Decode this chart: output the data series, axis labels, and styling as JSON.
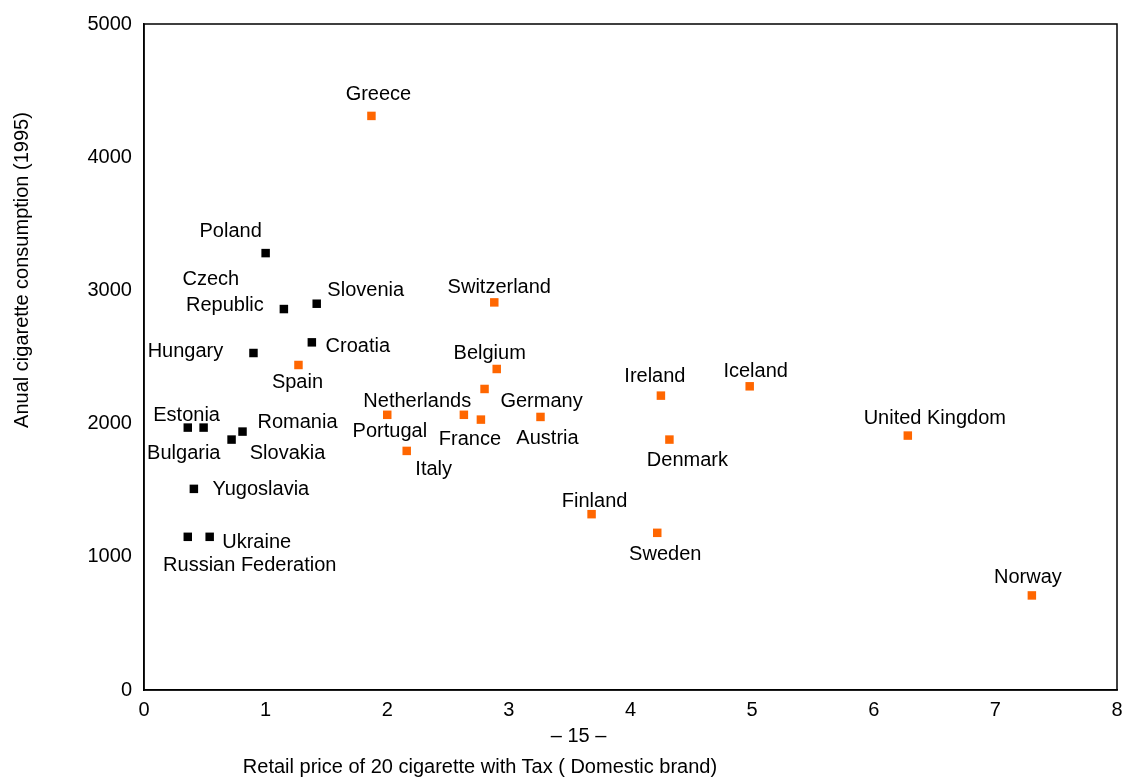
{
  "chart_data": {
    "type": "scatter",
    "xlabel": "Retail price of 20 cigarette with Tax ( Domestic brand)",
    "ylabel": "Anual cigarette consumption (1995)",
    "xlim": [
      0,
      8
    ],
    "xticks": [
      0,
      1,
      2,
      3,
      4,
      5,
      6,
      7,
      8
    ],
    "ylim": [
      0,
      5000
    ],
    "yticks": [
      0,
      1000,
      2000,
      3000,
      4000,
      5000
    ],
    "grid": false,
    "legend": false,
    "marker": "square",
    "series": [
      {
        "color": "#000000",
        "x": [
          1.0,
          1.15,
          1.42,
          1.38,
          0.9,
          0.49,
          0.36,
          0.81,
          0.72,
          0.41,
          0.36,
          0.54
        ],
        "values": [
          3280,
          2860,
          2900,
          2610,
          2530,
          1970,
          1970,
          1940,
          1880,
          1510,
          1150,
          1150
        ]
      },
      {
        "color": "#ff6600",
        "x": [
          1.87,
          1.27,
          2.88,
          2.9,
          2.0,
          2.63,
          2.77,
          2.8,
          2.16,
          3.26,
          4.25,
          4.98,
          6.28,
          4.32,
          3.68,
          4.22,
          7.3
        ],
        "values": [
          4310,
          2440,
          2910,
          2410,
          2066,
          2066,
          2030,
          2260,
          1795,
          2050,
          2210,
          2280,
          1910,
          1880,
          1320,
          1180,
          710
        ]
      }
    ],
    "annotations": [
      {
        "text": "Poland",
        "x": 1.0,
        "y": 3280
      },
      {
        "text": "Czech Republic",
        "x": 1.15,
        "y": 2860
      },
      {
        "text": "Slovenia",
        "x": 1.42,
        "y": 2900
      },
      {
        "text": "Croatia",
        "x": 1.38,
        "y": 2610
      },
      {
        "text": "Hungary",
        "x": 0.9,
        "y": 2530
      },
      {
        "text": "Estonia",
        "x": 0.49,
        "y": 1970
      },
      {
        "text": "Bulgaria",
        "x": 0.36,
        "y": 1970
      },
      {
        "text": "Romania",
        "x": 0.81,
        "y": 1940
      },
      {
        "text": "Slovakia",
        "x": 0.72,
        "y": 1880
      },
      {
        "text": "Yugoslavia",
        "x": 0.41,
        "y": 1510
      },
      {
        "text": "Russian Federation",
        "x": 0.36,
        "y": 1150
      },
      {
        "text": "Ukraine",
        "x": 0.54,
        "y": 1150
      },
      {
        "text": "Greece",
        "x": 1.87,
        "y": 4310
      },
      {
        "text": "Spain",
        "x": 1.27,
        "y": 2440
      },
      {
        "text": "Switzerland",
        "x": 2.88,
        "y": 2910
      },
      {
        "text": "Belgium",
        "x": 2.9,
        "y": 2410
      },
      {
        "text": "Netherlands",
        "x": 2.0,
        "y": 2066
      },
      {
        "text": "Portugal",
        "x": 2.63,
        "y": 2066
      },
      {
        "text": "France",
        "x": 2.77,
        "y": 2030
      },
      {
        "text": "Germany",
        "x": 2.8,
        "y": 2260
      },
      {
        "text": "Italy",
        "x": 2.16,
        "y": 1795
      },
      {
        "text": "Austria",
        "x": 3.26,
        "y": 2050
      },
      {
        "text": "Ireland",
        "x": 4.25,
        "y": 2210
      },
      {
        "text": "Iceland",
        "x": 4.98,
        "y": 2280
      },
      {
        "text": "United Kingdom",
        "x": 6.28,
        "y": 1910
      },
      {
        "text": "Denmark",
        "x": 4.32,
        "y": 1880
      },
      {
        "text": "Finland",
        "x": 3.68,
        "y": 1320
      },
      {
        "text": "Sweden",
        "x": 4.22,
        "y": 1180
      },
      {
        "text": "Norway",
        "x": 7.3,
        "y": 710
      },
      "– 15 –"
    ]
  }
}
